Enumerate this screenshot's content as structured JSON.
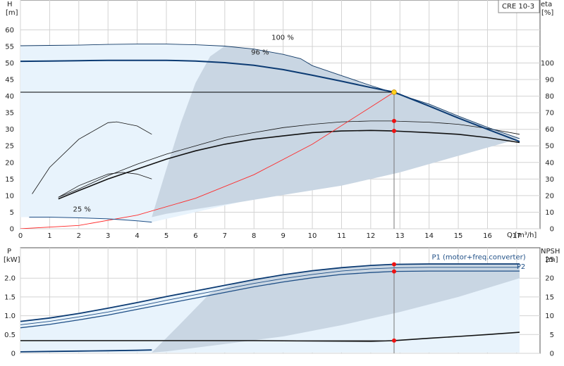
{
  "chart_data": [
    {
      "type": "line",
      "panel": "head-efficiency",
      "pump_label": "CRE 10-3",
      "xlabel": "Q [m³/h]",
      "ylabel_left_name": "H",
      "ylabel_left_unit": "[m]",
      "ylabel_right_name": "eta",
      "ylabel_right_unit": "[%]",
      "xlim": [
        0,
        17.8
      ],
      "ylim_left": [
        0,
        69
      ],
      "ylim_right": [
        0,
        138
      ],
      "x_ticks": [
        0,
        1,
        2,
        3,
        4,
        5,
        6,
        7,
        8,
        9,
        10,
        11,
        12,
        13,
        14,
        15,
        16,
        17
      ],
      "y_left_ticks": [
        0,
        5,
        10,
        15,
        20,
        25,
        30,
        35,
        40,
        45,
        50,
        55,
        60
      ],
      "y_right_ticks": [
        0,
        10,
        20,
        30,
        40,
        50,
        60,
        70,
        80,
        90,
        100
      ],
      "grid": true,
      "duty_point": {
        "q": 12.8,
        "h": 41.2,
        "eta_upper": 65,
        "eta_lower": 59
      },
      "series": [
        {
          "name": "100 %",
          "axis": "left",
          "label_at": [
            8.6,
            57
          ],
          "x": [
            0,
            1,
            2,
            3,
            4,
            5,
            6,
            7,
            8,
            9,
            9.6,
            10,
            11,
            12,
            13,
            14,
            15,
            16,
            17.1
          ],
          "y": [
            55.2,
            55.3,
            55.4,
            55.6,
            55.7,
            55.7,
            55.5,
            55.1,
            54.2,
            52.6,
            51.3,
            49.2,
            46.2,
            43.2,
            40.4,
            37.6,
            34.0,
            30.6,
            27.2
          ]
        },
        {
          "name": "96 %",
          "axis": "left",
          "label_at": [
            7.9,
            52.5
          ],
          "x": [
            0,
            1,
            2,
            3,
            4,
            5,
            6,
            7,
            8,
            9,
            10,
            11,
            12,
            12.8,
            14,
            15,
            16,
            17.1
          ],
          "y": [
            50.5,
            50.6,
            50.7,
            50.8,
            50.8,
            50.8,
            50.6,
            50.1,
            49.3,
            48.0,
            46.3,
            44.5,
            42.6,
            41.2,
            37.0,
            33.4,
            30.0,
            26.3
          ]
        },
        {
          "name": "25 %",
          "axis": "left",
          "label_at": [
            1.8,
            5.2
          ],
          "x": [
            0.3,
            1,
            2,
            3,
            4,
            4.5
          ],
          "y": [
            3.5,
            3.5,
            3.3,
            3.0,
            2.4,
            2.0
          ]
        }
      ],
      "efficiency_curves": [
        {
          "axis": "right",
          "x": [
            1.3,
            2,
            3,
            4,
            5,
            6,
            7,
            8,
            9,
            10,
            11,
            12,
            12.8,
            13,
            14,
            15,
            16,
            17.1
          ],
          "y": [
            19,
            24,
            32,
            39,
            45,
            50,
            55,
            58,
            61,
            63,
            64.5,
            65,
            65,
            64.8,
            64.3,
            63,
            60.5,
            57
          ]
        },
        {
          "axis": "right",
          "x": [
            1.3,
            2,
            3,
            4,
            5,
            6,
            7,
            8,
            9,
            10,
            11,
            12,
            12.8,
            13,
            14,
            15,
            16,
            17.1
          ],
          "y": [
            18,
            23,
            30,
            36,
            42,
            47,
            51,
            54,
            56,
            58,
            59,
            59.3,
            59,
            58.8,
            58,
            57,
            55,
            52
          ]
        },
        {
          "axis": "right",
          "x": [
            0.4,
            1,
            2,
            3,
            3.3,
            4,
            4.5
          ],
          "y": [
            21,
            37,
            54,
            64,
            64.5,
            62,
            57
          ]
        },
        {
          "axis": "right",
          "x": [
            1.3,
            2,
            3,
            3.5,
            4,
            4.5
          ],
          "y": [
            19,
            26,
            33,
            34,
            33,
            30
          ]
        }
      ],
      "system_curve": {
        "x": [
          0,
          2,
          4,
          6,
          8,
          10,
          12,
          12.8
        ],
        "y": [
          0,
          1.0,
          4.1,
          9.2,
          16.3,
          25.5,
          36.7,
          41.2
        ]
      }
    },
    {
      "type": "line",
      "panel": "power-npsh",
      "ylabel_left_name": "P",
      "ylabel_left_unit": "[kW]",
      "ylabel_right_name": "NPSH",
      "ylabel_right_unit": "[m]",
      "xlim": [
        0,
        17.8
      ],
      "ylim_left": [
        0,
        2.81
      ],
      "ylim_right": [
        0,
        28.1
      ],
      "y_left_ticks": [
        0,
        0.5,
        1.0,
        1.5,
        2.0
      ],
      "y_left_tick_labels": [
        "0",
        "0.5",
        "1.0",
        "1.5",
        "2.0"
      ],
      "y_right_ticks": [
        0,
        5,
        10,
        15,
        20,
        25
      ],
      "grid": true,
      "duty_point": {
        "q": 12.8,
        "p1": 2.37,
        "p2": 2.18,
        "npsh": 3.4
      },
      "series": [
        {
          "name": "P1 (motor+freq.converter)",
          "axis": "left",
          "label_at": [
            15.7,
            2.5
          ],
          "x": [
            0,
            1,
            2,
            3,
            4,
            5,
            6,
            7,
            8,
            9,
            10,
            11,
            12,
            12.8,
            13,
            14,
            15,
            16,
            17.1
          ],
          "y": [
            0.85,
            0.94,
            1.06,
            1.2,
            1.35,
            1.51,
            1.66,
            1.81,
            1.96,
            2.09,
            2.2,
            2.28,
            2.34,
            2.37,
            2.37,
            2.38,
            2.38,
            2.38,
            2.38
          ]
        },
        {
          "name": "P2",
          "axis": "left",
          "label_at": [
            17.0,
            2.25
          ],
          "x": [
            0,
            1,
            2,
            3,
            4,
            5,
            6,
            7,
            8,
            9,
            10,
            11,
            12,
            12.8,
            14,
            15,
            16,
            17.1
          ],
          "y": [
            0.68,
            0.77,
            0.89,
            1.02,
            1.17,
            1.32,
            1.47,
            1.62,
            1.77,
            1.9,
            2.01,
            2.1,
            2.15,
            2.18,
            2.19,
            2.19,
            2.19,
            2.19
          ]
        },
        {
          "name": "",
          "axis": "left",
          "x": [
            0,
            1,
            2,
            3,
            4,
            5,
            6,
            7,
            8,
            9,
            10,
            11,
            12,
            13,
            14,
            15,
            16,
            17.1
          ],
          "y": [
            0.76,
            0.85,
            0.97,
            1.1,
            1.25,
            1.41,
            1.56,
            1.71,
            1.86,
            1.99,
            2.1,
            2.19,
            2.25,
            2.28,
            2.29,
            2.29,
            2.29,
            2.29
          ]
        },
        {
          "name": "",
          "axis": "left",
          "x": [
            0,
            1,
            2,
            3,
            4,
            4.5
          ],
          "y": [
            0.04,
            0.05,
            0.06,
            0.07,
            0.08,
            0.09
          ]
        },
        {
          "name": "NPSH",
          "axis": "right",
          "x": [
            0,
            2,
            4,
            6,
            8,
            10,
            12,
            12.8,
            14,
            15,
            16,
            17.1
          ],
          "y": [
            3.4,
            3.4,
            3.4,
            3.4,
            3.4,
            3.3,
            3.2,
            3.4,
            4.0,
            4.5,
            5.0,
            5.6
          ]
        }
      ]
    }
  ]
}
